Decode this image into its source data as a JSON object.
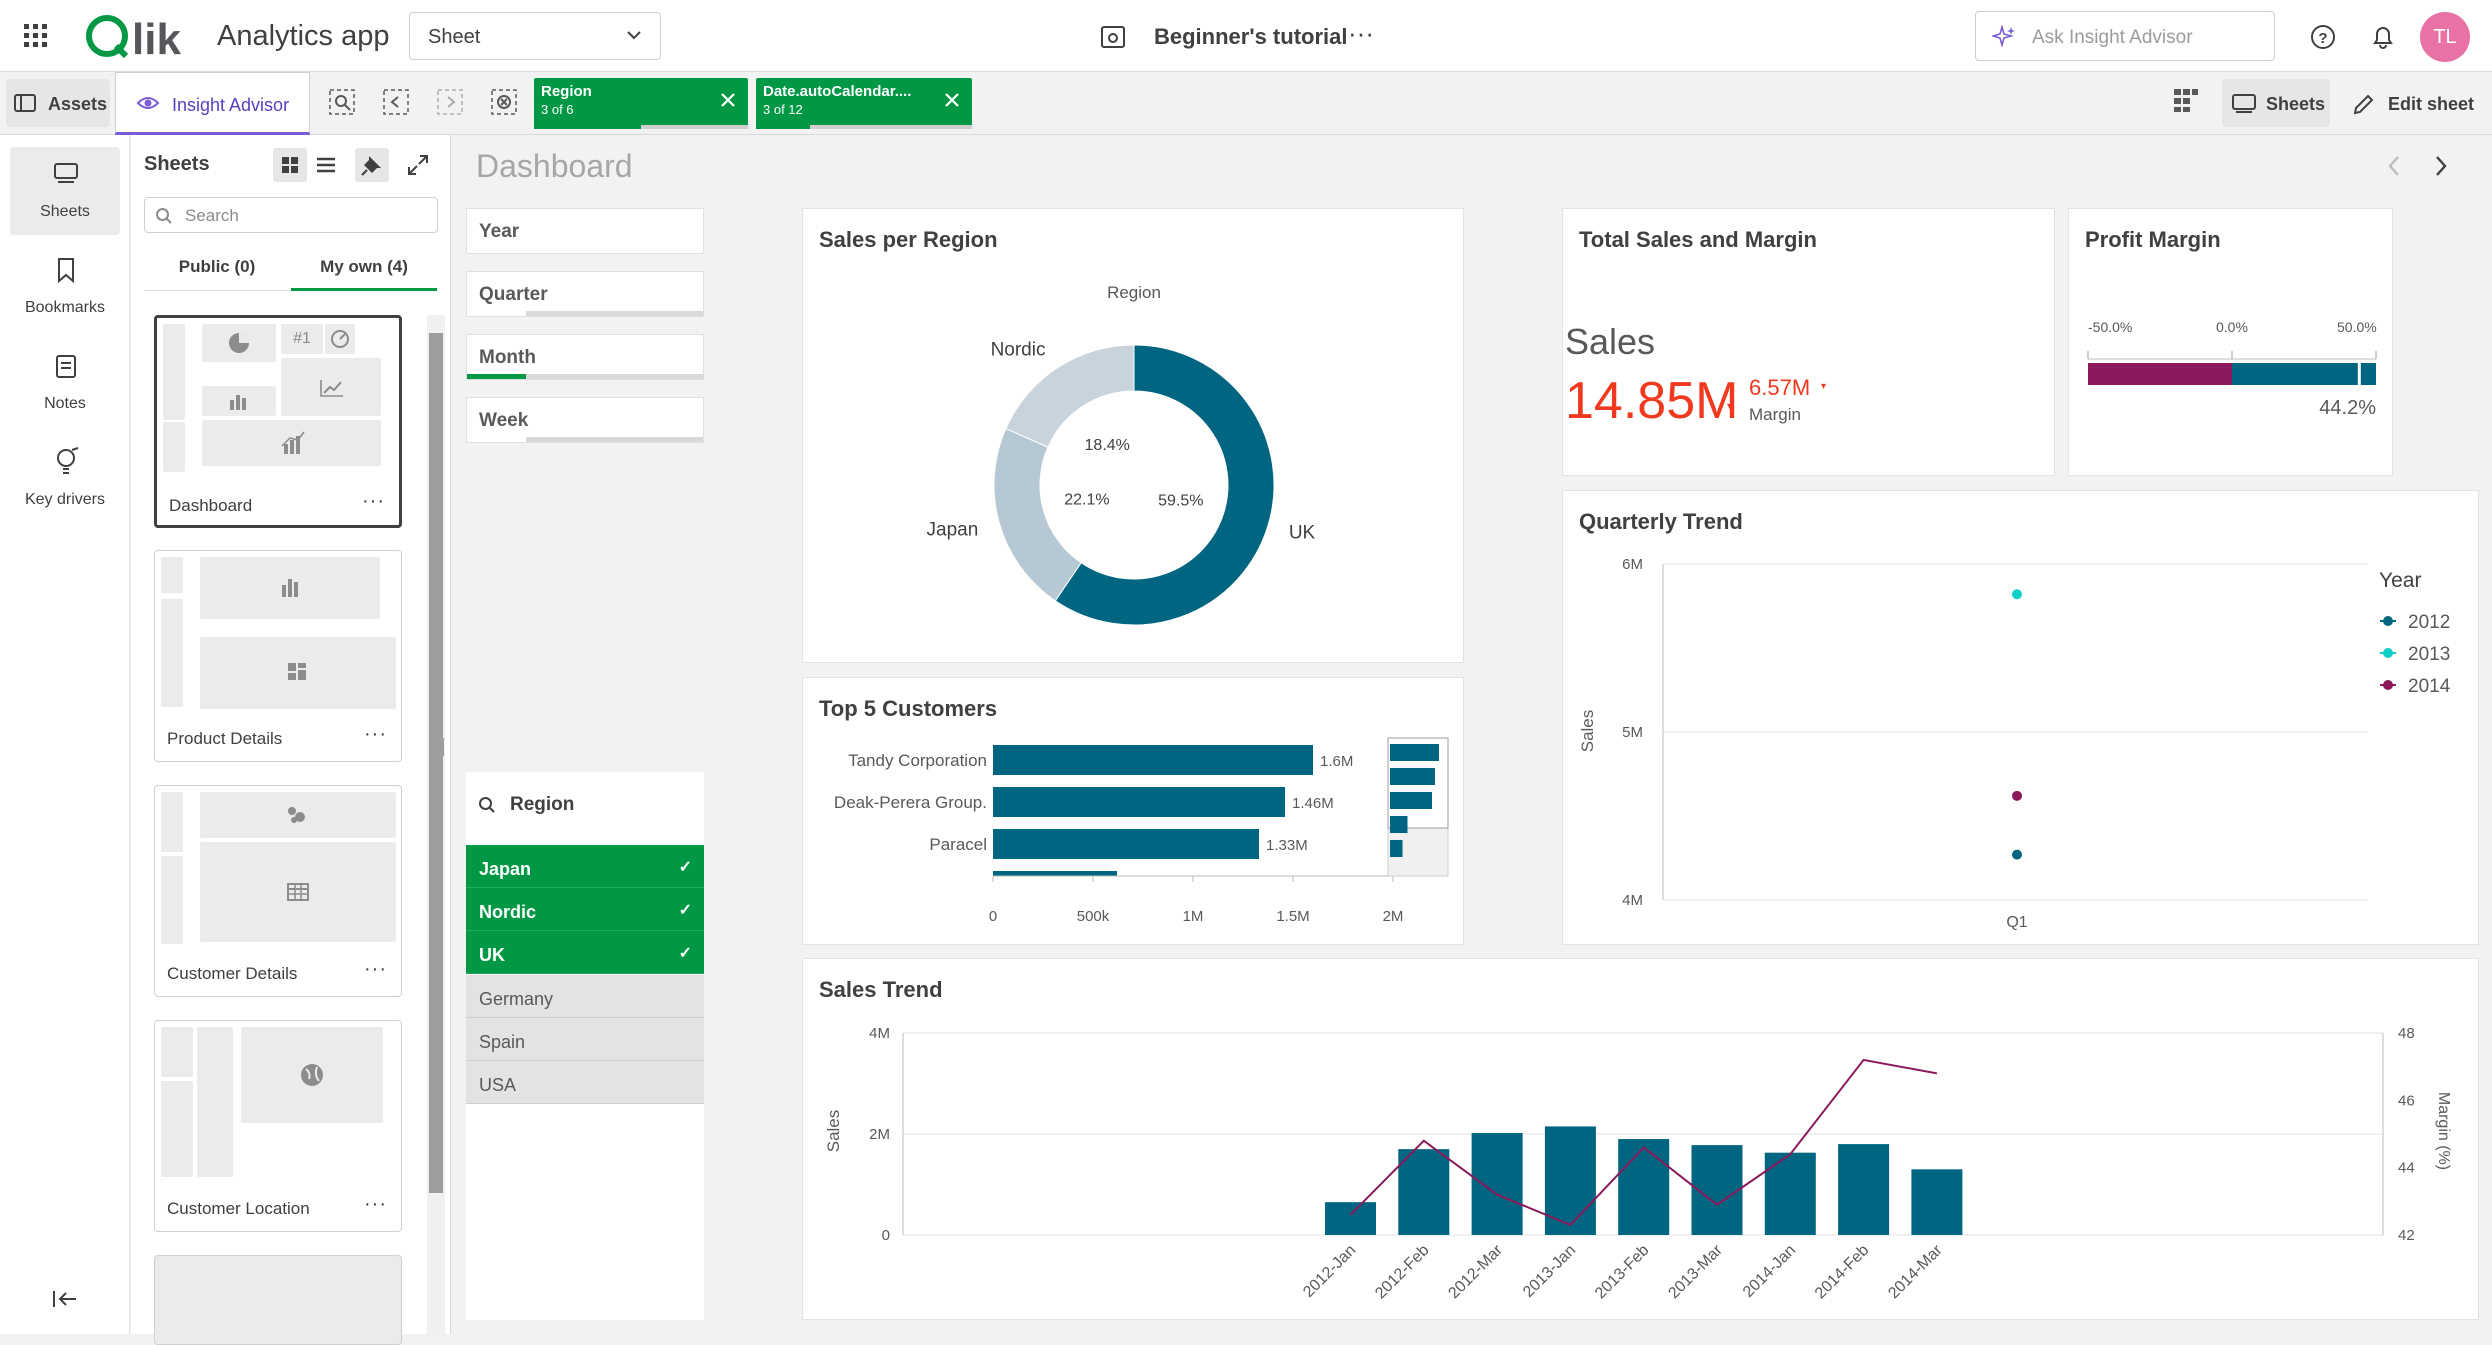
{
  "topbar": {
    "logo": "Qlik",
    "app_name": "Analytics app",
    "view_select": "Sheet",
    "sheet_title": "Beginner's tutorial",
    "more": "···",
    "ask_placeholder": "Ask Insight Advisor",
    "avatar": "TL"
  },
  "toolbar": {
    "assets": "Assets",
    "insight_advisor": "Insight Advisor",
    "sheets_btn": "Sheets",
    "edit_sheet": "Edit sheet",
    "selections": [
      {
        "field": "Region",
        "state": "3 of 6"
      },
      {
        "field": "Date.autoCalendar....",
        "state": "3 of 12"
      }
    ]
  },
  "leftnav": {
    "items": [
      "Sheets",
      "Bookmarks",
      "Notes",
      "Key drivers"
    ]
  },
  "sheetpanel": {
    "title": "Sheets",
    "search_placeholder": "Search",
    "tabs": [
      "Public (0)",
      "My own (4)"
    ],
    "sheets": [
      "Dashboard",
      "Product Details",
      "Customer Details",
      "Customer Location"
    ],
    "thumb_badge": "#1"
  },
  "main": {
    "page_title": "Dashboard",
    "filters": [
      "Year",
      "Quarter",
      "Month",
      "Week"
    ],
    "listbox": {
      "title": "Region",
      "selected": [
        "Japan",
        "Nordic",
        "UK"
      ],
      "alternative": [
        "Germany",
        "Spain",
        "USA"
      ]
    }
  },
  "kpi": {
    "title": "Total Sales and Margin",
    "label": "Sales",
    "value": "14.85M",
    "margin_value": "6.57M",
    "margin_label": "Margin"
  },
  "gauge": {
    "title": "Profit Margin",
    "ticks": [
      "-50.0%",
      "0.0%",
      "50.0%"
    ],
    "value_label": "44.2%",
    "value": 44.2,
    "min": -50,
    "max": 50,
    "colors": {
      "negative": "#8b1a5c",
      "positive": "#006580"
    }
  },
  "chart_data": [
    {
      "type": "pie",
      "title": "Sales per Region",
      "legend_title": "Region",
      "categories": [
        "UK",
        "Japan",
        "Nordic"
      ],
      "values": [
        59.5,
        22.1,
        18.4
      ],
      "labels": [
        "59.5%",
        "22.1%",
        "18.4%"
      ],
      "colors": [
        "#006580",
        "#b6c8d4",
        "#c8d3dc"
      ]
    },
    {
      "type": "bar",
      "title": "Top 5 Customers",
      "categories": [
        "Tandy Corporation",
        "Deak-Perera Group.",
        "Paracel"
      ],
      "values": [
        1.6,
        1.46,
        1.33
      ],
      "data_labels": [
        "1.6M",
        "1.46M",
        "1.33M"
      ],
      "x_ticks": [
        "0",
        "500k",
        "1M",
        "1.5M",
        "2M"
      ],
      "xlim": [
        0,
        2
      ],
      "color": "#006580"
    },
    {
      "type": "scatter",
      "title": "Quarterly Trend",
      "ylabel": "Sales",
      "x_ticks": [
        "Q1"
      ],
      "y_ticks": [
        "6M",
        "5M",
        "4M"
      ],
      "ylim": [
        4,
        6
      ],
      "legend_title": "Year",
      "series": [
        {
          "name": "2012",
          "x": "Q1",
          "y": 4.27,
          "color": "#006580"
        },
        {
          "name": "2013",
          "x": "Q1",
          "y": 5.82,
          "color": "#10cfc9"
        },
        {
          "name": "2014",
          "x": "Q1",
          "y": 4.62,
          "color": "#8b1a5c"
        }
      ]
    },
    {
      "type": "bar",
      "title": "Sales Trend",
      "ylabel": "Sales",
      "y2label": "Margin (%)",
      "y_ticks": [
        "4M",
        "2M",
        "0"
      ],
      "y2_ticks": [
        "48",
        "46",
        "44",
        "42"
      ],
      "ylim": [
        0,
        4
      ],
      "y2lim": [
        42,
        48
      ],
      "categories": [
        "2012-Jan",
        "2012-Feb",
        "2012-Mar",
        "2013-Jan",
        "2013-Feb",
        "2013-Mar",
        "2014-Jan",
        "2014-Feb",
        "2014-Mar"
      ],
      "series": [
        {
          "name": "Sales",
          "type": "bar",
          "values": [
            0.65,
            1.7,
            2.02,
            2.15,
            1.9,
            1.78,
            1.63,
            1.8,
            1.3
          ],
          "color": "#006580"
        },
        {
          "name": "Margin",
          "type": "line",
          "values": [
            42.6,
            44.8,
            43.2,
            42.3,
            44.6,
            42.9,
            44.4,
            47.2,
            46.8
          ],
          "color": "#8b1a5c"
        }
      ]
    }
  ]
}
